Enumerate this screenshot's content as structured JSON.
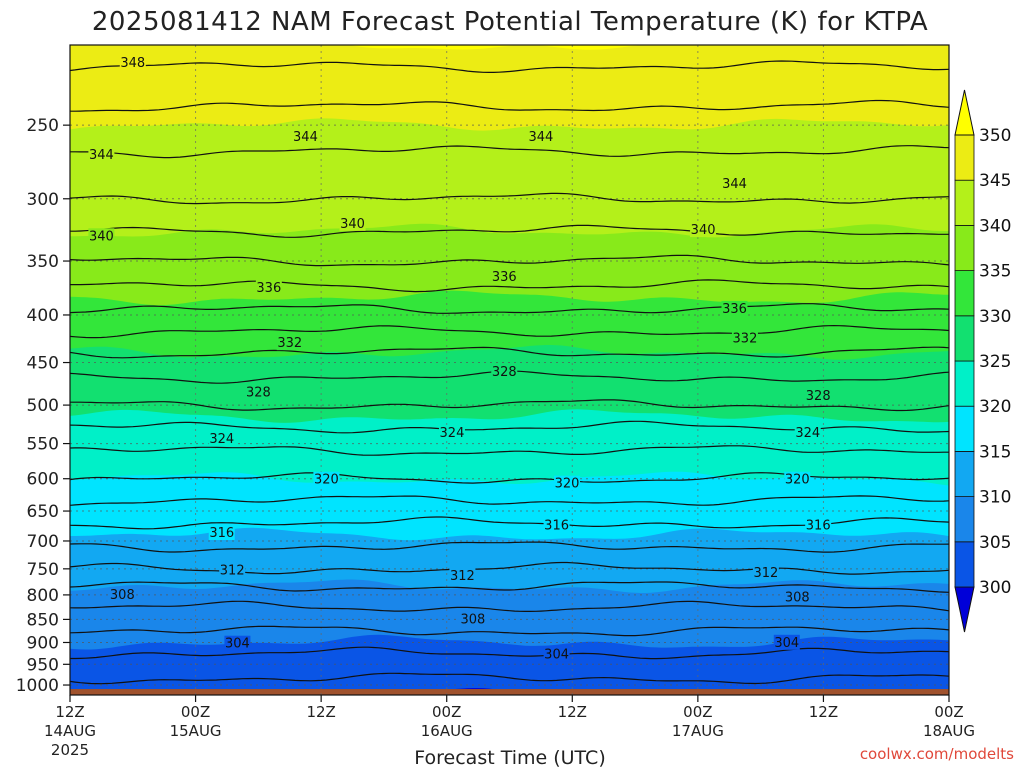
{
  "chart_data": {
    "type": "heatmap",
    "title": "2025081412 NAM Forecast Potential Temperature (K) for KTPA",
    "xlabel": "Forecast Time (UTC)",
    "ylabel": "",
    "y_axis": {
      "scale": "log-pressure",
      "ticks": [
        250,
        300,
        350,
        400,
        450,
        500,
        550,
        600,
        650,
        700,
        750,
        800,
        850,
        900,
        950,
        1000
      ],
      "range": [
        1025,
        205
      ],
      "grid": "dotted"
    },
    "x_axis": {
      "ticks": [
        {
          "label": "12Z",
          "sub1": "14AUG",
          "sub2": "2025"
        },
        {
          "label": "00Z",
          "sub1": "15AUG",
          "sub2": ""
        },
        {
          "label": "12Z",
          "sub1": "",
          "sub2": ""
        },
        {
          "label": "00Z",
          "sub1": "16AUG",
          "sub2": ""
        },
        {
          "label": "12Z",
          "sub1": "",
          "sub2": ""
        },
        {
          "label": "00Z",
          "sub1": "17AUG",
          "sub2": ""
        },
        {
          "label": "12Z",
          "sub1": "",
          "sub2": ""
        },
        {
          "label": "00Z",
          "sub1": "18AUG",
          "sub2": ""
        }
      ],
      "range_hours": [
        0,
        84
      ],
      "grid": "dotted"
    },
    "color_scale": {
      "levels": [
        300,
        305,
        310,
        315,
        320,
        325,
        330,
        335,
        340,
        345,
        350
      ],
      "tick_labels": [
        "300",
        "305",
        "310",
        "315",
        "320",
        "325",
        "330",
        "335",
        "340",
        "345",
        "350"
      ],
      "colors": [
        "#0000d8",
        "#0a55e6",
        "#1a86ea",
        "#12a8f2",
        "#00e4ff",
        "#00f0c8",
        "#12e070",
        "#33e63a",
        "#88ea1a",
        "#b4f01a",
        "#ecec14",
        "#ffff00"
      ],
      "extend": "both"
    },
    "contours": {
      "interval_K": 2,
      "levels": [
        302,
        304,
        306,
        308,
        310,
        312,
        314,
        316,
        318,
        320,
        322,
        324,
        326,
        328,
        330,
        332,
        334,
        336,
        338,
        340,
        342,
        344,
        346,
        348
      ],
      "labels": [
        {
          "value": "348",
          "hour": 6,
          "pressure": 215
        },
        {
          "value": "344",
          "hour": 22.5,
          "pressure": 258
        },
        {
          "value": "344",
          "hour": 45,
          "pressure": 258
        },
        {
          "value": "344",
          "hour": 3,
          "pressure": 270
        },
        {
          "value": "344",
          "hour": 63.5,
          "pressure": 290
        },
        {
          "value": "340",
          "hour": 27,
          "pressure": 320
        },
        {
          "value": "340",
          "hour": 3,
          "pressure": 330
        },
        {
          "value": "340",
          "hour": 60.5,
          "pressure": 325
        },
        {
          "value": "336",
          "hour": 41.5,
          "pressure": 365
        },
        {
          "value": "336",
          "hour": 19,
          "pressure": 375
        },
        {
          "value": "336",
          "hour": 63.5,
          "pressure": 395
        },
        {
          "value": "332",
          "hour": 21,
          "pressure": 430
        },
        {
          "value": "332",
          "hour": 64.5,
          "pressure": 425
        },
        {
          "value": "328",
          "hour": 41.5,
          "pressure": 462
        },
        {
          "value": "328",
          "hour": 18,
          "pressure": 486
        },
        {
          "value": "328",
          "hour": 71.5,
          "pressure": 490
        },
        {
          "value": "324",
          "hour": 14.5,
          "pressure": 545
        },
        {
          "value": "324",
          "hour": 36.5,
          "pressure": 537
        },
        {
          "value": "324",
          "hour": 70.5,
          "pressure": 537
        },
        {
          "value": "320",
          "hour": 24.5,
          "pressure": 603
        },
        {
          "value": "320",
          "hour": 47.5,
          "pressure": 609
        },
        {
          "value": "320",
          "hour": 69.5,
          "pressure": 603
        },
        {
          "value": "316",
          "hour": 14.5,
          "pressure": 688
        },
        {
          "value": "316",
          "hour": 46.5,
          "pressure": 675
        },
        {
          "value": "316",
          "hour": 71.5,
          "pressure": 675
        },
        {
          "value": "312",
          "hour": 15.5,
          "pressure": 755
        },
        {
          "value": "312",
          "hour": 37.5,
          "pressure": 765
        },
        {
          "value": "312",
          "hour": 66.5,
          "pressure": 760
        },
        {
          "value": "308",
          "hour": 5,
          "pressure": 802
        },
        {
          "value": "308",
          "hour": 38.5,
          "pressure": 852
        },
        {
          "value": "308",
          "hour": 69.5,
          "pressure": 807
        },
        {
          "value": "304",
          "hour": 16,
          "pressure": 905
        },
        {
          "value": "304",
          "hour": 46.5,
          "pressure": 930
        },
        {
          "value": "304",
          "hour": 68.5,
          "pressure": 903
        }
      ]
    },
    "ground_fill": {
      "color": "#a0522d",
      "pressure_from": 1010
    }
  },
  "credit": "coolwx.com/modelts"
}
